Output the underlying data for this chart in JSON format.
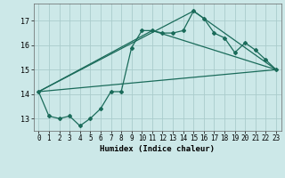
{
  "xlabel": "Humidex (Indice chaleur)",
  "background_color": "#cce8e8",
  "grid_color": "#aacccc",
  "line_color": "#1a6b5a",
  "xlim": [
    -0.5,
    23.5
  ],
  "ylim": [
    12.5,
    17.7
  ],
  "yticks": [
    13,
    14,
    15,
    16,
    17
  ],
  "xticks": [
    0,
    1,
    2,
    3,
    4,
    5,
    6,
    7,
    8,
    9,
    10,
    11,
    12,
    13,
    14,
    15,
    16,
    17,
    18,
    19,
    20,
    21,
    22,
    23
  ],
  "series1_x": [
    0,
    1,
    2,
    3,
    4,
    5,
    6,
    7,
    8,
    9,
    10,
    11,
    12,
    13,
    14,
    15,
    16,
    17,
    18,
    19,
    20,
    21,
    22,
    23
  ],
  "series1_y": [
    14.1,
    13.1,
    13.0,
    13.1,
    12.7,
    13.0,
    13.4,
    14.1,
    14.1,
    15.9,
    16.6,
    16.6,
    16.5,
    16.5,
    16.6,
    17.4,
    17.1,
    16.5,
    16.3,
    15.7,
    16.1,
    15.8,
    15.4,
    15.0
  ],
  "series2_x": [
    0,
    23
  ],
  "series2_y": [
    14.1,
    15.0
  ],
  "series3_x": [
    0,
    11,
    23
  ],
  "series3_y": [
    14.1,
    16.6,
    15.0
  ],
  "series4_x": [
    0,
    15,
    23
  ],
  "series4_y": [
    14.1,
    17.4,
    15.0
  ],
  "tick_fontsize": 5.5,
  "xlabel_fontsize": 6.5
}
